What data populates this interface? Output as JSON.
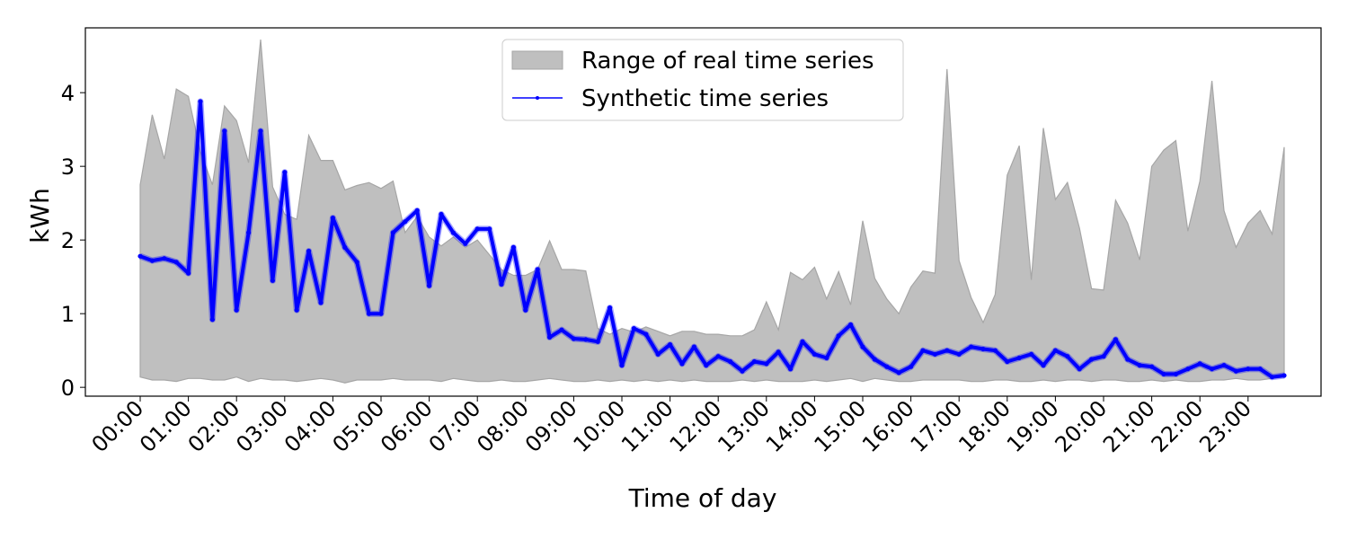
{
  "chart_data": {
    "type": "line",
    "title": "",
    "xlabel": "Time of day",
    "ylabel": "kWh",
    "ylim": [
      -0.12,
      4.88
    ],
    "x_count": 96,
    "x_ticks": [
      "00:00",
      "01:00",
      "02:00",
      "03:00",
      "04:00",
      "05:00",
      "06:00",
      "07:00",
      "08:00",
      "09:00",
      "10:00",
      "11:00",
      "12:00",
      "13:00",
      "14:00",
      "15:00",
      "16:00",
      "17:00",
      "18:00",
      "19:00",
      "20:00",
      "21:00",
      "22:00",
      "23:00"
    ],
    "y_ticks": [
      0,
      1,
      2,
      3,
      4
    ],
    "grid": false,
    "legend": {
      "placement": "top-center",
      "entries": [
        "Range of real time series",
        "Synthetic time series"
      ]
    },
    "colors": {
      "range_fill": "#bfbfbf",
      "range_edge": "#a6a6a6",
      "synthetic": "#0000ff"
    },
    "series": [
      {
        "name": "Range of real time series",
        "kind": "band",
        "upper": [
          2.75,
          3.7,
          3.1,
          4.05,
          3.95,
          3.2,
          2.75,
          3.82,
          3.62,
          3.05,
          4.72,
          2.72,
          2.35,
          2.28,
          3.42,
          3.08,
          3.08,
          2.68,
          2.74,
          2.78,
          2.7,
          2.8,
          2.1,
          2.32,
          2.04,
          1.92,
          2.04,
          1.9,
          2.0,
          1.8,
          1.6,
          1.52,
          1.52,
          1.6,
          1.99,
          1.6,
          1.6,
          1.58,
          0.8,
          0.72,
          0.8,
          0.75,
          0.82,
          0.76,
          0.7,
          0.76,
          0.76,
          0.72,
          0.72,
          0.7,
          0.7,
          0.78,
          1.16,
          0.78,
          1.56,
          1.46,
          1.63,
          1.2,
          1.57,
          1.12,
          2.26,
          1.48,
          1.2,
          1.0,
          1.36,
          1.58,
          1.55,
          4.32,
          1.72,
          1.22,
          0.88,
          1.26,
          2.88,
          3.28,
          1.46,
          3.52,
          2.55,
          2.78,
          2.16,
          1.34,
          1.32,
          2.54,
          2.23,
          1.73,
          3.0,
          3.22,
          3.35,
          2.12,
          2.8,
          4.16,
          2.4,
          1.9,
          2.23,
          2.4,
          2.08,
          3.26
        ],
        "lower": [
          0.14,
          0.1,
          0.1,
          0.08,
          0.12,
          0.12,
          0.1,
          0.1,
          0.14,
          0.08,
          0.12,
          0.1,
          0.1,
          0.08,
          0.1,
          0.12,
          0.1,
          0.06,
          0.1,
          0.1,
          0.1,
          0.12,
          0.1,
          0.1,
          0.1,
          0.08,
          0.12,
          0.1,
          0.08,
          0.08,
          0.1,
          0.08,
          0.08,
          0.1,
          0.12,
          0.1,
          0.08,
          0.08,
          0.1,
          0.08,
          0.1,
          0.08,
          0.1,
          0.08,
          0.1,
          0.08,
          0.1,
          0.08,
          0.08,
          0.08,
          0.1,
          0.08,
          0.1,
          0.08,
          0.08,
          0.08,
          0.1,
          0.08,
          0.1,
          0.12,
          0.08,
          0.12,
          0.1,
          0.08,
          0.08,
          0.1,
          0.1,
          0.1,
          0.1,
          0.08,
          0.08,
          0.1,
          0.1,
          0.08,
          0.08,
          0.1,
          0.08,
          0.1,
          0.1,
          0.08,
          0.1,
          0.1,
          0.08,
          0.08,
          0.1,
          0.08,
          0.1,
          0.08,
          0.08,
          0.1,
          0.1,
          0.12,
          0.1,
          0.1,
          0.12,
          0.14
        ]
      },
      {
        "name": "Synthetic time series",
        "kind": "line",
        "values": [
          1.78,
          1.72,
          1.75,
          1.7,
          1.55,
          3.88,
          0.92,
          3.48,
          1.05,
          2.1,
          3.48,
          1.45,
          2.92,
          1.05,
          1.85,
          1.15,
          2.3,
          1.9,
          1.7,
          1.0,
          1.0,
          2.1,
          2.25,
          2.4,
          1.38,
          2.35,
          2.1,
          1.95,
          2.15,
          2.15,
          1.4,
          1.9,
          1.05,
          1.6,
          0.68,
          0.78,
          0.66,
          0.65,
          0.62,
          1.08,
          0.3,
          0.8,
          0.72,
          0.45,
          0.58,
          0.32,
          0.55,
          0.3,
          0.42,
          0.35,
          0.22,
          0.35,
          0.32,
          0.48,
          0.25,
          0.62,
          0.45,
          0.4,
          0.7,
          0.85,
          0.55,
          0.38,
          0.28,
          0.2,
          0.28,
          0.5,
          0.45,
          0.5,
          0.45,
          0.55,
          0.52,
          0.5,
          0.35,
          0.4,
          0.45,
          0.3,
          0.5,
          0.42,
          0.25,
          0.38,
          0.42,
          0.65,
          0.38,
          0.3,
          0.28,
          0.18,
          0.18,
          0.25,
          0.32,
          0.25,
          0.3,
          0.22,
          0.25,
          0.25,
          0.14,
          0.16
        ]
      }
    ]
  }
}
